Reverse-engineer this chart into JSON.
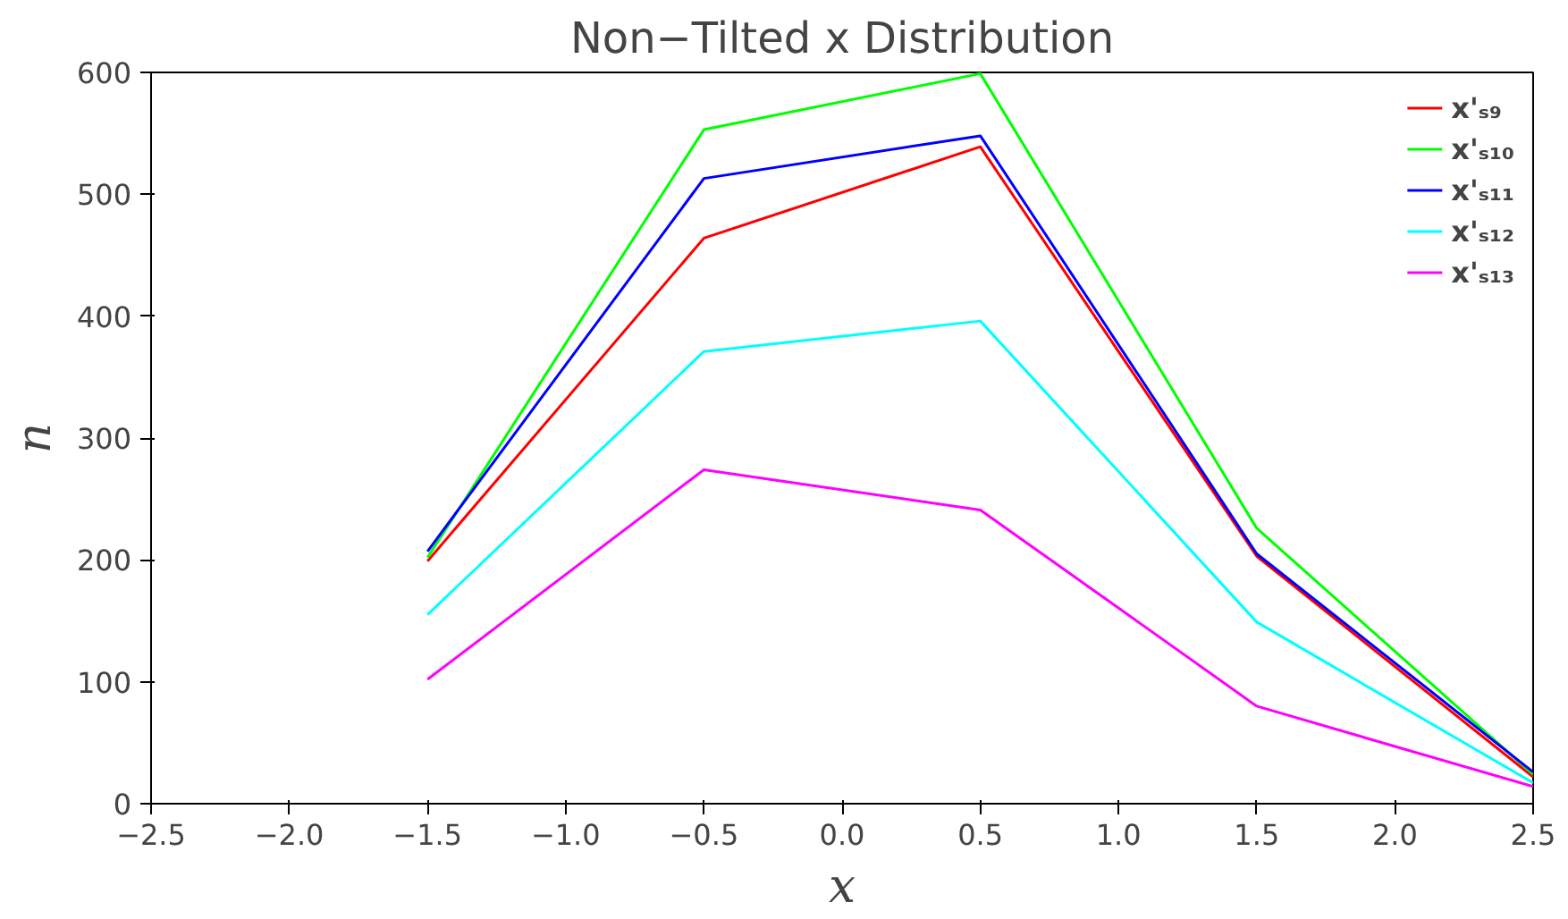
{
  "chart_data": {
    "type": "line",
    "title": "Non−Tilted x Distribution",
    "xlabel": "x",
    "ylabel": "n",
    "x": [
      -1.5,
      -0.5,
      0.5,
      1.5,
      2.5
    ],
    "series": [
      {
        "name": "x'ₛ₉",
        "color": "#ff0000",
        "values": [
          199,
          464,
          539,
          203,
          22
        ]
      },
      {
        "name": "x'ₛ₁₀",
        "color": "#00ff00",
        "values": [
          202,
          553,
          599,
          226,
          24
        ]
      },
      {
        "name": "x'ₛ₁₁",
        "color": "#0000ff",
        "values": [
          207,
          513,
          548,
          205,
          26
        ]
      },
      {
        "name": "x'ₛ₁₂",
        "color": "#00ffff",
        "values": [
          155,
          371,
          396,
          149,
          17
        ]
      },
      {
        "name": "x'ₛ₁₃",
        "color": "#ff00ff",
        "values": [
          102,
          274,
          241,
          80,
          14
        ]
      }
    ],
    "xlim": [
      -2.5,
      2.5
    ],
    "ylim": [
      0,
      600
    ],
    "xticks": [
      {
        "value": -2.5,
        "label": "−2.5"
      },
      {
        "value": -2.0,
        "label": "−2.0"
      },
      {
        "value": -1.5,
        "label": "−1.5"
      },
      {
        "value": -1.0,
        "label": "−1.0"
      },
      {
        "value": -0.5,
        "label": "−0.5"
      },
      {
        "value": 0.0,
        "label": "0.0"
      },
      {
        "value": 0.5,
        "label": "0.5"
      },
      {
        "value": 1.0,
        "label": "1.0"
      },
      {
        "value": 1.5,
        "label": "1.5"
      },
      {
        "value": 2.0,
        "label": "2.0"
      },
      {
        "value": 2.5,
        "label": "2.5"
      }
    ],
    "yticks": [
      0,
      100,
      200,
      300,
      400,
      500,
      600
    ],
    "grid": false,
    "legend": "top right",
    "marker": "none",
    "line_style": "solid"
  }
}
